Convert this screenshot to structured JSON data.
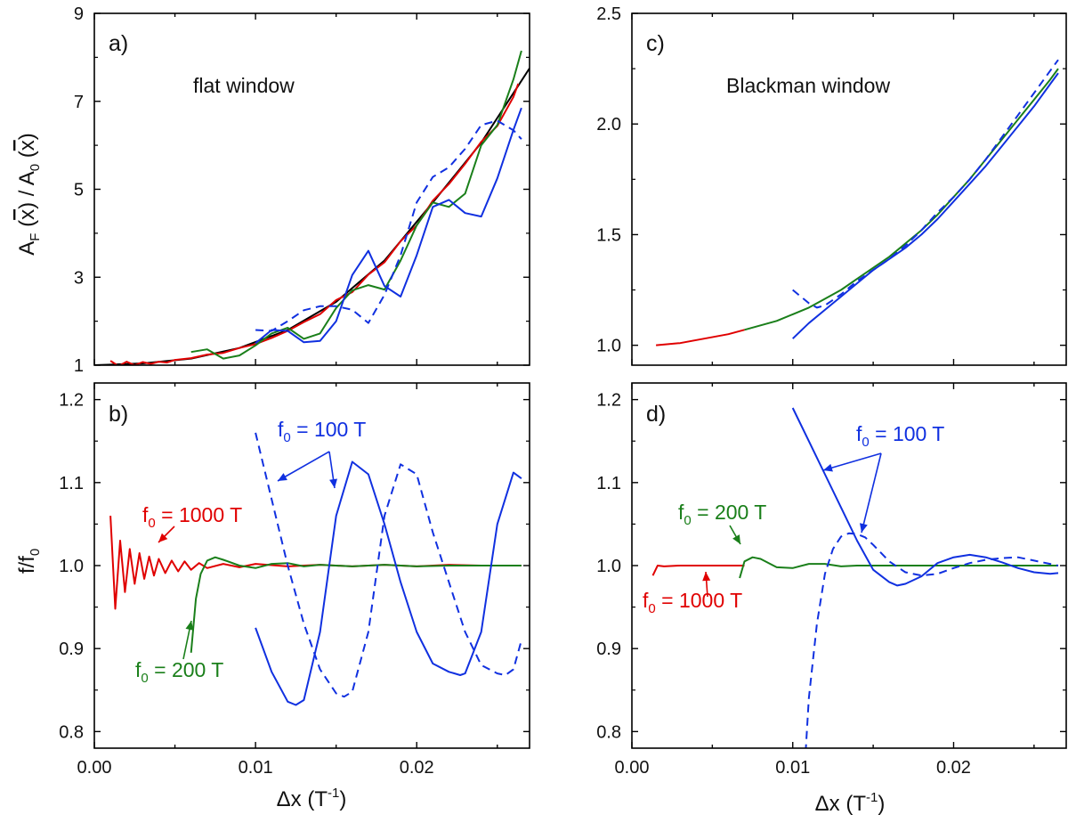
{
  "chart_data": [
    {
      "type": "line",
      "panel": "a)",
      "label": "flat window",
      "ylabel": "A_F(x̄)/A_0(x̄)",
      "xlim": [
        0,
        0.027
      ],
      "ylim": [
        1,
        9
      ],
      "x_ticks": [
        0.0,
        0.01,
        0.02
      ],
      "y_ticks": [
        1,
        3,
        5,
        7,
        9
      ],
      "y_tick_labels": [
        "1",
        "3",
        "5",
        "7",
        "9"
      ],
      "series": [
        {
          "color": "#000000",
          "dash": "solid",
          "x": [
            0.0,
            0.003,
            0.006,
            0.009,
            0.012,
            0.015,
            0.018,
            0.021,
            0.024,
            0.027
          ],
          "y": [
            1.0,
            1.04,
            1.15,
            1.39,
            1.8,
            2.44,
            3.38,
            4.7,
            6.06,
            7.75
          ]
        },
        {
          "color": "#e00000",
          "dash": "solid",
          "x": [
            0.001,
            0.0015,
            0.002,
            0.0025,
            0.003,
            0.0035,
            0.004,
            0.0045,
            0.005,
            0.006,
            0.007,
            0.008,
            0.009,
            0.01,
            0.011,
            0.012,
            0.013,
            0.014,
            0.015,
            0.016,
            0.017,
            0.018,
            0.019,
            0.02,
            0.021,
            0.022,
            0.023,
            0.024,
            0.025,
            0.026,
            0.0263
          ],
          "y": [
            1.1,
            0.98,
            1.08,
            1.0,
            1.07,
            1.03,
            1.08,
            1.06,
            1.12,
            1.16,
            1.24,
            1.28,
            1.39,
            1.48,
            1.62,
            1.78,
            1.98,
            2.16,
            2.48,
            2.66,
            3.06,
            3.34,
            3.82,
            4.18,
            4.74,
            5.12,
            5.58,
            6.08,
            6.44,
            7.1,
            7.4
          ]
        },
        {
          "color": "#1a7f1a",
          "dash": "solid",
          "x": [
            0.006,
            0.007,
            0.008,
            0.009,
            0.01,
            0.011,
            0.012,
            0.013,
            0.014,
            0.015,
            0.016,
            0.017,
            0.018,
            0.019,
            0.02,
            0.021,
            0.022,
            0.023,
            0.024,
            0.025,
            0.026,
            0.0265
          ],
          "y": [
            1.3,
            1.36,
            1.15,
            1.22,
            1.45,
            1.72,
            1.85,
            1.6,
            1.72,
            2.3,
            2.7,
            2.82,
            2.72,
            3.38,
            4.18,
            4.7,
            4.6,
            4.9,
            6.0,
            6.46,
            7.5,
            8.15
          ]
        },
        {
          "color": "#1030e0",
          "dash": "solid",
          "x": [
            0.01,
            0.011,
            0.012,
            0.013,
            0.014,
            0.015,
            0.016,
            0.017,
            0.018,
            0.019,
            0.02,
            0.021,
            0.022,
            0.023,
            0.024,
            0.025,
            0.026,
            0.0265
          ],
          "y": [
            1.5,
            1.8,
            1.78,
            1.52,
            1.55,
            2.0,
            3.05,
            3.6,
            2.8,
            2.56,
            3.5,
            4.6,
            4.76,
            4.46,
            4.38,
            5.25,
            6.35,
            6.85
          ]
        },
        {
          "color": "#1030e0",
          "dash": "dashed",
          "x": [
            0.01,
            0.011,
            0.012,
            0.013,
            0.014,
            0.015,
            0.016,
            0.017,
            0.018,
            0.019,
            0.02,
            0.021,
            0.022,
            0.023,
            0.024,
            0.025,
            0.026,
            0.0265
          ],
          "y": [
            1.8,
            1.78,
            2.0,
            2.25,
            2.34,
            2.34,
            2.26,
            1.96,
            2.6,
            3.5,
            4.7,
            5.28,
            5.5,
            5.92,
            6.46,
            6.56,
            6.34,
            6.14
          ]
        }
      ]
    },
    {
      "type": "line",
      "panel": "b)",
      "ylabel": "f/f_0",
      "xlabel": "Δx (T⁻¹)",
      "xlim": [
        0,
        0.027
      ],
      "ylim": [
        0.78,
        1.22
      ],
      "x_ticks": [
        0.0,
        0.01,
        0.02
      ],
      "x_tick_labels": [
        "0.00",
        "0.01",
        "0.02"
      ],
      "y_ticks": [
        0.8,
        0.9,
        1.0,
        1.1,
        1.2
      ],
      "y_tick_labels": [
        "0.8",
        "0.9",
        "1.0",
        "1.1",
        "1.2"
      ],
      "annotations": [
        {
          "text": "f",
          "sub": "0",
          "rest": " = 100 T",
          "color": "#1030e0"
        },
        {
          "text": "f",
          "sub": "0",
          "rest": " = 1000 T",
          "color": "#e00000"
        },
        {
          "text": "f",
          "sub": "0",
          "rest": " = 200 T",
          "color": "#1a7f1a"
        }
      ],
      "series": [
        {
          "color": "#e00000",
          "dash": "solid",
          "x": [
            0.001,
            0.0013,
            0.0016,
            0.0019,
            0.0022,
            0.0025,
            0.0028,
            0.0031,
            0.0034,
            0.0037,
            0.004,
            0.0044,
            0.0048,
            0.0052,
            0.0056,
            0.006,
            0.0065,
            0.007,
            0.008,
            0.009,
            0.01,
            0.012,
            0.014,
            0.016,
            0.018,
            0.02,
            0.022,
            0.024,
            0.0265
          ],
          "y": [
            1.06,
            0.948,
            1.03,
            0.968,
            1.02,
            0.978,
            1.015,
            0.984,
            1.011,
            0.988,
            1.008,
            0.991,
            1.006,
            0.993,
            1.005,
            0.995,
            1.003,
            0.997,
            1.002,
            0.998,
            1.002,
            0.999,
            1.001,
            0.999,
            1.001,
            0.999,
            1.001,
            1.0,
            1.0
          ]
        },
        {
          "color": "#1a7f1a",
          "dash": "solid",
          "x": [
            0.006,
            0.0063,
            0.0066,
            0.007,
            0.0075,
            0.008,
            0.009,
            0.01,
            0.011,
            0.012,
            0.013,
            0.014,
            0.016,
            0.018,
            0.02,
            0.022,
            0.024,
            0.0265
          ],
          "y": [
            0.895,
            0.96,
            0.99,
            1.006,
            1.01,
            1.007,
            1.0,
            0.997,
            1.002,
            1.003,
            0.999,
            1.001,
            0.999,
            1.001,
            0.999,
            1.0,
            1.0,
            1.0
          ]
        },
        {
          "color": "#1030e0",
          "dash": "solid",
          "x": [
            0.01,
            0.011,
            0.012,
            0.0125,
            0.013,
            0.014,
            0.015,
            0.016,
            0.017,
            0.018,
            0.019,
            0.02,
            0.021,
            0.022,
            0.0227,
            0.023,
            0.024,
            0.025,
            0.026,
            0.0265
          ],
          "y": [
            0.925,
            0.872,
            0.836,
            0.832,
            0.838,
            0.92,
            1.06,
            1.125,
            1.11,
            1.05,
            0.98,
            0.92,
            0.882,
            0.872,
            0.868,
            0.87,
            0.92,
            1.05,
            1.112,
            1.105
          ]
        },
        {
          "color": "#1030e0",
          "dash": "dashed",
          "x": [
            0.01,
            0.011,
            0.012,
            0.013,
            0.014,
            0.015,
            0.0155,
            0.016,
            0.017,
            0.018,
            0.019,
            0.02,
            0.021,
            0.022,
            0.023,
            0.024,
            0.025,
            0.0255,
            0.026,
            0.0265
          ],
          "y": [
            1.16,
            1.08,
            1.0,
            0.93,
            0.875,
            0.846,
            0.842,
            0.848,
            0.92,
            1.06,
            1.122,
            1.11,
            1.04,
            0.98,
            0.92,
            0.88,
            0.87,
            0.868,
            0.875,
            0.91
          ]
        }
      ]
    },
    {
      "type": "line",
      "panel": "c)",
      "label": "Blackman window",
      "xlim": [
        0,
        0.027
      ],
      "ylim": [
        0.91,
        2.5
      ],
      "x_ticks": [
        0.0,
        0.01,
        0.02
      ],
      "y_ticks": [
        1.0,
        1.5,
        2.0,
        2.5
      ],
      "y_tick_labels": [
        "1.0",
        "1.5",
        "2.0",
        "2.5"
      ],
      "series": [
        {
          "color": "#e00000",
          "dash": "solid",
          "x": [
            0.0015,
            0.003,
            0.0045,
            0.006,
            0.007
          ],
          "y": [
            1.0,
            1.01,
            1.03,
            1.05,
            1.07
          ]
        },
        {
          "color": "#1a7f1a",
          "dash": "solid",
          "x": [
            0.007,
            0.008,
            0.009,
            0.01,
            0.011,
            0.012,
            0.013,
            0.014,
            0.015,
            0.016,
            0.017,
            0.018,
            0.019,
            0.02,
            0.021,
            0.022,
            0.023,
            0.024,
            0.025,
            0.026,
            0.0265
          ],
          "y": [
            1.07,
            1.09,
            1.11,
            1.14,
            1.17,
            1.21,
            1.25,
            1.3,
            1.35,
            1.4,
            1.46,
            1.52,
            1.59,
            1.67,
            1.75,
            1.84,
            1.93,
            2.02,
            2.11,
            2.2,
            2.25
          ]
        },
        {
          "color": "#1030e0",
          "dash": "solid",
          "x": [
            0.01,
            0.011,
            0.012,
            0.013,
            0.014,
            0.015,
            0.016,
            0.017,
            0.018,
            0.019,
            0.02,
            0.021,
            0.022,
            0.023,
            0.024,
            0.025,
            0.026,
            0.0265
          ],
          "y": [
            1.03,
            1.1,
            1.16,
            1.22,
            1.28,
            1.34,
            1.39,
            1.44,
            1.5,
            1.57,
            1.65,
            1.73,
            1.81,
            1.9,
            1.99,
            2.08,
            2.18,
            2.23
          ]
        },
        {
          "color": "#1030e0",
          "dash": "dashed",
          "x": [
            0.01,
            0.0105,
            0.011,
            0.0115,
            0.012,
            0.013,
            0.014,
            0.015,
            0.016,
            0.017,
            0.018,
            0.019,
            0.02,
            0.021,
            0.022,
            0.023,
            0.024,
            0.025,
            0.026,
            0.0265
          ],
          "y": [
            1.25,
            1.22,
            1.19,
            1.17,
            1.18,
            1.23,
            1.29,
            1.34,
            1.39,
            1.45,
            1.52,
            1.6,
            1.67,
            1.75,
            1.84,
            1.94,
            2.04,
            2.14,
            2.24,
            2.29
          ]
        }
      ]
    },
    {
      "type": "line",
      "panel": "d)",
      "xlabel": "Δx (T⁻¹)",
      "xlim": [
        0,
        0.027
      ],
      "ylim": [
        0.78,
        1.22
      ],
      "x_ticks": [
        0.0,
        0.01,
        0.02
      ],
      "x_tick_labels": [
        "0.00",
        "0.01",
        "0.02"
      ],
      "y_ticks": [
        0.8,
        0.9,
        1.0,
        1.1,
        1.2
      ],
      "y_tick_labels": [
        "0.8",
        "0.9",
        "1.0",
        "1.1",
        "1.2"
      ],
      "annotations": [
        {
          "text": "f",
          "sub": "0",
          "rest": " = 100 T",
          "color": "#1030e0"
        },
        {
          "text": "f",
          "sub": "0",
          "rest": " = 200 T",
          "color": "#1a7f1a"
        },
        {
          "text": "f",
          "sub": "0",
          "rest": " = 1000 T",
          "color": "#e00000"
        }
      ],
      "series": [
        {
          "color": "#e00000",
          "dash": "solid",
          "x": [
            0.0013,
            0.0016,
            0.002,
            0.003,
            0.004,
            0.005,
            0.007
          ],
          "y": [
            0.988,
            1.0,
            0.999,
            1.0,
            1.0,
            1.0,
            1.0
          ]
        },
        {
          "color": "#1a7f1a",
          "dash": "solid",
          "x": [
            0.0067,
            0.007,
            0.0075,
            0.008,
            0.009,
            0.01,
            0.011,
            0.012,
            0.013,
            0.014,
            0.016,
            0.018,
            0.02,
            0.022,
            0.024,
            0.0265
          ],
          "y": [
            0.985,
            1.005,
            1.01,
            1.008,
            0.998,
            0.997,
            1.002,
            1.002,
            0.999,
            1.0,
            1.0,
            1.0,
            1.0,
            1.0,
            1.0,
            1.0
          ]
        },
        {
          "color": "#1030e0",
          "dash": "solid",
          "x": [
            0.01,
            0.011,
            0.012,
            0.013,
            0.014,
            0.015,
            0.016,
            0.0165,
            0.017,
            0.018,
            0.019,
            0.02,
            0.021,
            0.022,
            0.023,
            0.024,
            0.025,
            0.026,
            0.0265
          ],
          "y": [
            1.19,
            1.15,
            1.11,
            1.07,
            1.03,
            0.995,
            0.98,
            0.976,
            0.978,
            0.987,
            1.003,
            1.01,
            1.013,
            1.01,
            1.004,
            0.997,
            0.992,
            0.99,
            0.991
          ]
        },
        {
          "color": "#1030e0",
          "dash": "dashed",
          "x": [
            0.0108,
            0.011,
            0.0115,
            0.012,
            0.0125,
            0.013,
            0.0135,
            0.014,
            0.0145,
            0.015,
            0.016,
            0.017,
            0.018,
            0.019,
            0.02,
            0.021,
            0.022,
            0.023,
            0.024,
            0.025,
            0.026,
            0.0265
          ],
          "y": [
            0.775,
            0.84,
            0.93,
            0.99,
            1.02,
            1.035,
            1.039,
            1.038,
            1.034,
            1.025,
            1.005,
            0.992,
            0.988,
            0.99,
            0.997,
            1.003,
            1.007,
            1.009,
            1.01,
            1.006,
            1.002,
            1.0
          ]
        }
      ]
    }
  ]
}
